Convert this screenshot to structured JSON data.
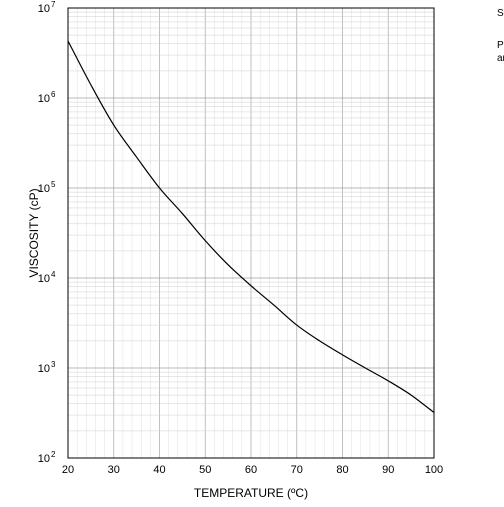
{
  "side_notes": {
    "line1": "Sc",
    "line2": "Pl",
    "line3": "ar"
  },
  "chart_data": {
    "type": "line",
    "title": "",
    "xlabel": "TEMPERATURE (ºC)",
    "ylabel": "VISCOSITY (cP)",
    "xlim": [
      20,
      100
    ],
    "ylim": [
      100,
      10000000
    ],
    "yscale": "log",
    "grid": true,
    "x_ticks": [
      "20",
      "30",
      "40",
      "50",
      "60",
      "70",
      "80",
      "90",
      "100"
    ],
    "y_ticks": [
      {
        "base": "10",
        "exp": "2"
      },
      {
        "base": "10",
        "exp": "3"
      },
      {
        "base": "10",
        "exp": "4"
      },
      {
        "base": "10",
        "exp": "5"
      },
      {
        "base": "10",
        "exp": "6"
      },
      {
        "base": "10",
        "exp": "7"
      }
    ],
    "series": [
      {
        "x": [
          20,
          25,
          30,
          35,
          40,
          45,
          50,
          55,
          60,
          65,
          70,
          75,
          80,
          85,
          90,
          95,
          100
        ],
        "y": [
          4300000,
          1400000,
          500000,
          220000,
          100000,
          52000,
          26000,
          14000,
          8200,
          5000,
          3000,
          2000,
          1400,
          1000,
          720,
          500,
          320
        ]
      }
    ]
  }
}
